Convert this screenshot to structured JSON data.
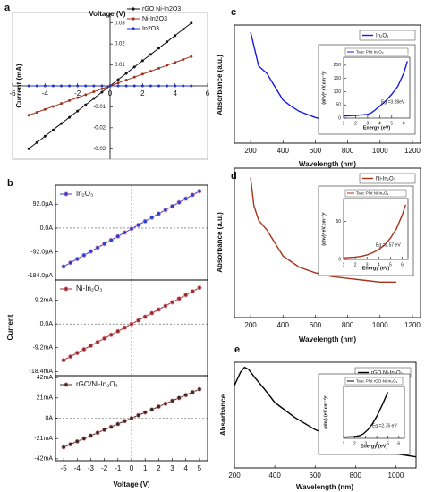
{
  "chart_data": [
    {
      "type": "line",
      "label": "a",
      "xlabel": "Voltage (V)",
      "ylabel": "Current (mA)",
      "axes_through_origin": true,
      "markers": true,
      "x": [
        -5,
        -4.5,
        -4,
        -3.5,
        -3,
        -2.5,
        -2,
        -1.5,
        -1,
        -0.5,
        0,
        0.5,
        1,
        1.5,
        2,
        2.5,
        3,
        3.5,
        4,
        4.5,
        5
      ],
      "xlim": [
        -6,
        6
      ],
      "xticks": [
        -6,
        -4,
        -2,
        0,
        2,
        4,
        6
      ],
      "ylim": [
        -0.035,
        0.035
      ],
      "yticks": [
        -0.03,
        -0.02,
        -0.01,
        0.01,
        0.02,
        0.03
      ],
      "series": [
        {
          "name": "rGO Ni-In2O3",
          "color": "#111111",
          "values": [
            -0.03,
            -0.027,
            -0.024,
            -0.021,
            -0.018,
            -0.015,
            -0.012,
            -0.009,
            -0.006,
            -0.003,
            0,
            0.003,
            0.006,
            0.009,
            0.012,
            0.015,
            0.018,
            0.021,
            0.024,
            0.027,
            0.03
          ]
        },
        {
          "name": "Ni-In2O3",
          "color": "#a0321e",
          "values": [
            -0.014,
            -0.0126,
            -0.0112,
            -0.0098,
            -0.0084,
            -0.007,
            -0.0056,
            -0.0042,
            -0.0028,
            -0.0014,
            0,
            0.0014,
            0.0028,
            0.0042,
            0.0056,
            0.007,
            0.0084,
            0.0098,
            0.0112,
            0.0126,
            0.014
          ]
        },
        {
          "name": "In2O3",
          "color": "#2233cc",
          "values": [
            0,
            0,
            0,
            0,
            0,
            0,
            0,
            0,
            0,
            0,
            0,
            0,
            0,
            0,
            0,
            0,
            0,
            0,
            0,
            0,
            0
          ]
        }
      ]
    },
    {
      "type": "line",
      "label": "b",
      "markers": true,
      "x": [
        -5,
        -4.5,
        -4,
        -3.5,
        -3,
        -2.5,
        -2,
        -1.5,
        -1,
        -0.5,
        0,
        0.5,
        1,
        1.5,
        2,
        2.5,
        3,
        3.5,
        4,
        4.5,
        5
      ],
      "xlim": [
        -5.6,
        5.6
      ],
      "ylim": [
        -200,
        165
      ],
      "yticks": [
        {
          "value": -184,
          "label": "-184.0µA"
        },
        {
          "value": -92,
          "label": "-92.0µA"
        },
        {
          "value": 0,
          "label": "0.0A"
        },
        {
          "value": 92,
          "label": "92.0µA"
        }
      ],
      "series": [
        {
          "name": "In₂O₃",
          "color": "#2b3fd6",
          "values": [
            -148,
            -133.5,
            -119,
            -104.5,
            -90,
            -75.5,
            -61,
            -46.5,
            -32,
            -17.5,
            -3,
            11.5,
            26,
            40.5,
            55,
            69.5,
            84,
            98.5,
            113,
            127.5,
            142
          ]
        }
      ]
    },
    {
      "type": "line",
      "ylabel": "Current",
      "markers": true,
      "x": [
        -5,
        -4.5,
        -4,
        -3.5,
        -3,
        -2.5,
        -2,
        -1.5,
        -1,
        -0.5,
        0,
        0.5,
        1,
        1.5,
        2,
        2.5,
        3,
        3.5,
        4,
        4.5,
        5
      ],
      "xlim": [
        -5.6,
        5.6
      ],
      "ylim": [
        -20,
        17
      ],
      "yticks": [
        {
          "value": -18.4,
          "label": "-18.4mA"
        },
        {
          "value": -9.2,
          "label": "-9.2mA"
        },
        {
          "value": 0,
          "label": "0.0A"
        },
        {
          "value": 9.2,
          "label": "9.2mA"
        }
      ],
      "series": [
        {
          "name": "Ni-In₂O₃",
          "color": "#9a2c2c",
          "values": [
            -14,
            -12.6,
            -11.2,
            -9.8,
            -8.4,
            -7,
            -5.6,
            -4.2,
            -2.8,
            -1.4,
            0,
            1.4,
            2.8,
            4.2,
            5.6,
            7,
            8.4,
            9.8,
            11.2,
            12.6,
            14
          ]
        }
      ]
    },
    {
      "type": "line",
      "xlabel": "Voltage (V)",
      "markers": true,
      "x": [
        -5,
        -4.5,
        -4,
        -3.5,
        -3,
        -2.5,
        -2,
        -1.5,
        -1,
        -0.5,
        0,
        0.5,
        1,
        1.5,
        2,
        2.5,
        3,
        3.5,
        4,
        4.5,
        5
      ],
      "xlim": [
        -5.6,
        5.6
      ],
      "xticks": [
        -5,
        -4,
        -3,
        -2,
        -1,
        0,
        1,
        2,
        3,
        4,
        5
      ],
      "ylim": [
        -44,
        44
      ],
      "yticks": [
        {
          "value": -42,
          "label": "-42mA"
        },
        {
          "value": -21,
          "label": "-21mA"
        },
        {
          "value": 0,
          "label": "0A"
        },
        {
          "value": 21,
          "label": "21mA"
        },
        {
          "value": 42,
          "label": "42mA"
        }
      ],
      "series": [
        {
          "name": "rGO/Ni-In₂O₃",
          "color": "#3a2a22",
          "values": [
            -30,
            -27,
            -24,
            -21,
            -18,
            -15,
            -12,
            -9,
            -6,
            -3,
            0,
            3,
            6,
            9,
            12,
            15,
            18,
            21,
            24,
            27,
            30
          ]
        }
      ]
    },
    {
      "type": "line",
      "label": "c",
      "xlabel": "Wavelength (nm)",
      "ylabel": "Absorbance (a.u.)",
      "x": [
        200,
        250,
        300,
        350,
        400,
        450,
        500,
        600,
        700,
        800,
        900,
        1000,
        1100
      ],
      "xlim": [
        100,
        1250
      ],
      "xticks": [
        200,
        400,
        600,
        800,
        1000,
        1200
      ],
      "ylim": [
        0,
        1.15
      ],
      "series": [
        {
          "name": "In₂O₃",
          "color": "#1a1ae6",
          "values": [
            1.08,
            0.75,
            0.68,
            0.55,
            0.42,
            0.36,
            0.31,
            0.25,
            0.21,
            0.18,
            0.15,
            0.12,
            0.1
          ]
        }
      ]
    },
    {
      "type": "line",
      "xlabel": "Energy (eV)",
      "ylabel": "(αhν)² eV.cm⁻¹)²",
      "annotation": "Eg =3.28eV",
      "x": [
        1,
        2,
        3,
        3.3,
        3.6,
        4,
        4.5,
        5,
        5.5,
        6,
        6.3
      ],
      "xlim": [
        1,
        6.5
      ],
      "xticks": [
        1,
        2,
        3,
        4,
        5,
        6
      ],
      "ylim": [
        0,
        230
      ],
      "yticks": [
        0,
        50,
        100,
        150,
        200
      ],
      "series": [
        {
          "name": "Tauc Plot In₂O₃",
          "color": "#1a1ae6",
          "values": [
            8,
            10,
            14,
            20,
            30,
            45,
            65,
            90,
            120,
            170,
            215
          ]
        }
      ]
    },
    {
      "type": "line",
      "label": "d",
      "xlabel": "Wavelength (nm)",
      "ylabel": "Absorbance (a.u.)",
      "x": [
        200,
        220,
        250,
        300,
        350,
        400,
        450,
        500,
        600,
        700,
        800,
        900,
        1000,
        1100
      ],
      "xlim": [
        100,
        1250
      ],
      "xticks": [
        200,
        400,
        600,
        800,
        1000,
        1200
      ],
      "ylim": [
        0,
        0.8
      ],
      "series": [
        {
          "name": "Ni-In₂O₃",
          "color": "#a8321a",
          "values": [
            0.75,
            0.6,
            0.52,
            0.47,
            0.4,
            0.33,
            0.3,
            0.27,
            0.24,
            0.22,
            0.21,
            0.2,
            0.19,
            0.19
          ]
        }
      ]
    },
    {
      "type": "line",
      "xlabel": "Energy (eV)",
      "ylabel": "(αhν)² eV.cm⁻¹)²",
      "annotation": "Eg =2.57 eV",
      "x": [
        1,
        2,
        2.5,
        3,
        3.5,
        4,
        4.5,
        5,
        5.5,
        6,
        6.3
      ],
      "xlim": [
        1,
        6.5
      ],
      "xticks": [
        1,
        2,
        3,
        4,
        5,
        6
      ],
      "ylim": [
        0,
        80
      ],
      "yticks": [
        0,
        50
      ],
      "series": [
        {
          "name": "Tauc Plot Ni-In₂O₃",
          "color": "#a8321a",
          "values": [
            2,
            3,
            4,
            6,
            9,
            13,
            19,
            28,
            40,
            58,
            72
          ]
        }
      ]
    },
    {
      "type": "line",
      "label": "e",
      "xlabel": "Wavelength (nm)",
      "ylabel": "Absorbance",
      "x": [
        200,
        230,
        250,
        270,
        300,
        350,
        400,
        500,
        600,
        700,
        800,
        900,
        1000,
        1100
      ],
      "xlim": [
        200,
        1100
      ],
      "xticks": [
        200,
        400,
        600,
        800,
        1000
      ],
      "ylim": [
        0,
        1.05
      ],
      "series": [
        {
          "name": "rGO Ni-In₂O₃",
          "color": "#000000",
          "values": [
            0.82,
            0.95,
            1.0,
            0.98,
            0.9,
            0.78,
            0.65,
            0.5,
            0.38,
            0.3,
            0.23,
            0.18,
            0.14,
            0.11
          ]
        }
      ]
    },
    {
      "type": "line",
      "xlabel": "Energy (eV)",
      "ylabel": "(αhν) (eV.cm⁻¹)²",
      "annotation": "Eg =2.76 eV",
      "x": [
        1,
        2,
        2.5,
        2.8,
        3.2,
        3.6,
        4,
        4.5,
        5
      ],
      "xlim": [
        1,
        6.5
      ],
      "xticks": [
        1,
        2,
        3,
        4,
        5,
        6
      ],
      "ylim": [
        0,
        90
      ],
      "series": [
        {
          "name": "Tauc Plot rGO-Ni-In₂O₃",
          "color": "#000000",
          "values": [
            2,
            3,
            5,
            8,
            15,
            25,
            38,
            58,
            80
          ]
        }
      ]
    }
  ]
}
